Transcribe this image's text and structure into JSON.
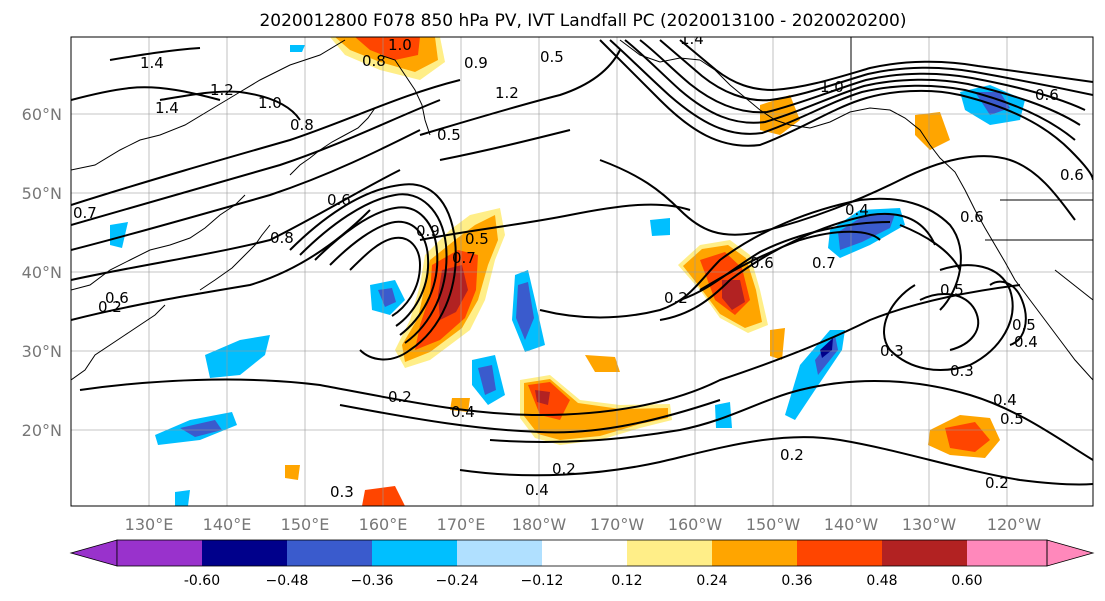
{
  "title": "2020012800 F078 850 hPa PV, IVT Landfall PC (2020013100 - 2020020200)",
  "lon_labels": [
    "130°E",
    "140°E",
    "150°E",
    "160°E",
    "170°E",
    "180°W",
    "170°W",
    "160°W",
    "150°W",
    "140°W",
    "130°W",
    "120°W"
  ],
  "lat_labels": [
    "60°N",
    "50°N",
    "40°N",
    "30°N",
    "20°N"
  ],
  "colorbar": {
    "colors": [
      "#9932cc",
      "#00008b",
      "#3a5bcd",
      "#00bfff",
      "#b0e0ff",
      "#ffffff",
      "#ffee88",
      "#ffa500",
      "#ff4500",
      "#b22222",
      "#ff88bb"
    ],
    "tick_labels": [
      "-0.60",
      "−0.48",
      "−0.36",
      "−0.24",
      "−0.12",
      "0.12",
      "0.24",
      "0.36",
      "0.48",
      "0.60"
    ]
  },
  "contour_labels": [
    "1.0",
    "0.8",
    "1.4",
    "1.2",
    "1.4",
    "1.0",
    "0.8",
    "0.7",
    "0.5",
    "0.6",
    "0.9",
    "0.8",
    "0.7",
    "0.6",
    "0.5",
    "0.4",
    "0.3",
    "0.2",
    "0.2",
    "0.4",
    "0.2",
    "0.3",
    "0.2",
    "0.2",
    "0.6",
    "0.4",
    "0.7",
    "0.5",
    "0.3",
    "0.4",
    "0.5",
    "0.6",
    "0.2",
    "0.6",
    "0.6",
    "1.0",
    "1.2",
    "0.9",
    "0.5",
    "0.4",
    "0.5",
    "1.4"
  ],
  "map_colors": {
    "negative_light": "#00bfff",
    "negative_mid": "#3a5bcd",
    "negative_dark": "#00008b",
    "positive_light": "#ffa500",
    "positive_mid": "#ff4500",
    "positive_dark": "#b22222",
    "positive_pale": "#ffee88"
  }
}
